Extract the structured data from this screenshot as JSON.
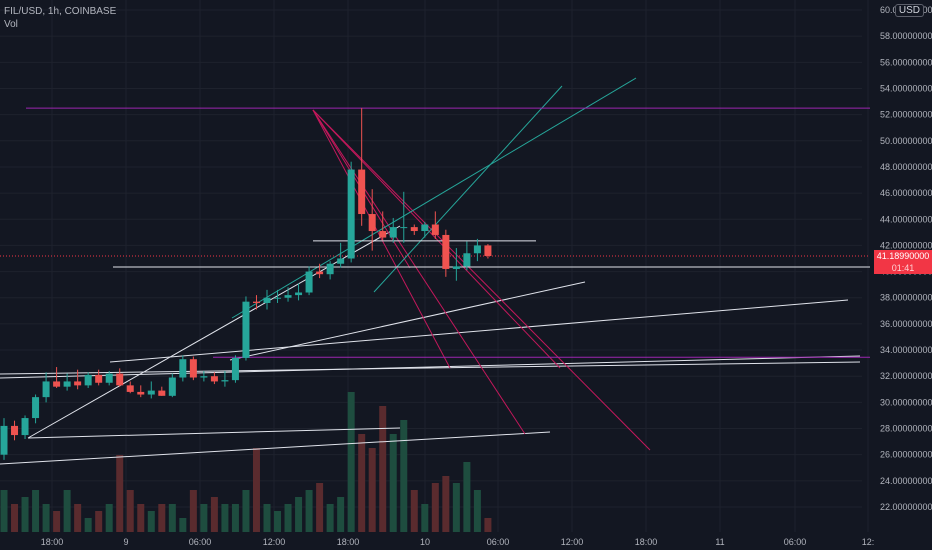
{
  "header": {
    "symbol_line": "FIL/USD, 1h, COINBASE",
    "volume_label": "Vol",
    "currency": "USD"
  },
  "price_badge": {
    "value": "41.18990000",
    "countdown": "01:41",
    "color": "#f23645"
  },
  "colors": {
    "background": "#131722",
    "up": "#26a69a",
    "down": "#ef5350",
    "vol_up": "#1e4d3f",
    "vol_down": "#5a2b2e",
    "axis_text": "#b2b5be",
    "grid": "#1e222d"
  },
  "chart_data": {
    "type": "candlestick",
    "timeframe": "1h",
    "x_axis_labels": [
      "18:00",
      "9",
      "06:00",
      "12:00",
      "18:00",
      "10",
      "06:00",
      "12:00",
      "18:00",
      "11",
      "06:00",
      "12:"
    ],
    "y_axis_labels": [
      "60.00000000",
      "58.00000000",
      "56.00000000",
      "54.00000000",
      "52.00000000",
      "50.00000000",
      "48.00000000",
      "46.00000000",
      "44.00000000",
      "42.00000000",
      "40.00000000",
      "38.00000000",
      "36.00000000",
      "34.00000000",
      "32.00000000",
      "30.00000000",
      "28.00000000",
      "26.00000000",
      "24.00000000",
      "22.00000000"
    ],
    "ylim": [
      21,
      61
    ],
    "candles": [
      {
        "o": 26,
        "h": 28.8,
        "l": 25.6,
        "c": 28.2
      },
      {
        "o": 28.2,
        "h": 28.6,
        "l": 27.1,
        "c": 27.5
      },
      {
        "o": 27.5,
        "h": 29,
        "l": 27.2,
        "c": 28.8
      },
      {
        "o": 28.8,
        "h": 30.6,
        "l": 28.4,
        "c": 30.4
      },
      {
        "o": 30.4,
        "h": 32.3,
        "l": 30,
        "c": 31.6
      },
      {
        "o": 31.6,
        "h": 32.7,
        "l": 31.1,
        "c": 31.2
      },
      {
        "o": 31.2,
        "h": 32.2,
        "l": 30.9,
        "c": 31.6
      },
      {
        "o": 31.6,
        "h": 32.5,
        "l": 31,
        "c": 31.3
      },
      {
        "o": 31.3,
        "h": 32.3,
        "l": 31.1,
        "c": 32.1
      },
      {
        "o": 32.1,
        "h": 32.5,
        "l": 31.3,
        "c": 31.5
      },
      {
        "o": 31.5,
        "h": 32.4,
        "l": 31.3,
        "c": 32.2
      },
      {
        "o": 32.2,
        "h": 32.6,
        "l": 31.2,
        "c": 31.3
      },
      {
        "o": 31.3,
        "h": 31.6,
        "l": 30.7,
        "c": 30.8
      },
      {
        "o": 30.8,
        "h": 31.3,
        "l": 30.4,
        "c": 30.6
      },
      {
        "o": 30.6,
        "h": 31.6,
        "l": 30.3,
        "c": 30.9
      },
      {
        "o": 30.9,
        "h": 31.2,
        "l": 30.5,
        "c": 30.5
      },
      {
        "o": 30.5,
        "h": 32.2,
        "l": 30.4,
        "c": 31.9
      },
      {
        "o": 31.9,
        "h": 33.6,
        "l": 31.6,
        "c": 33.3
      },
      {
        "o": 33.3,
        "h": 33.5,
        "l": 31.7,
        "c": 31.9
      },
      {
        "o": 31.9,
        "h": 32.4,
        "l": 31.6,
        "c": 32.0
      },
      {
        "o": 32.0,
        "h": 32.3,
        "l": 31.4,
        "c": 31.6
      },
      {
        "o": 31.6,
        "h": 32.4,
        "l": 31.2,
        "c": 31.7
      },
      {
        "o": 31.7,
        "h": 33.6,
        "l": 31.5,
        "c": 33.4
      },
      {
        "o": 33.4,
        "h": 38.1,
        "l": 33.2,
        "c": 37.7
      },
      {
        "o": 37.7,
        "h": 38.2,
        "l": 37.1,
        "c": 37.6
      },
      {
        "o": 37.6,
        "h": 38.6,
        "l": 37.1,
        "c": 38.0
      },
      {
        "o": 38.0,
        "h": 38.6,
        "l": 37.6,
        "c": 38.0
      },
      {
        "o": 38.0,
        "h": 38.8,
        "l": 37.7,
        "c": 38.2
      },
      {
        "o": 38.2,
        "h": 39.1,
        "l": 37.8,
        "c": 38.4
      },
      {
        "o": 38.4,
        "h": 40.4,
        "l": 38.2,
        "c": 40.0
      },
      {
        "o": 40.0,
        "h": 40.6,
        "l": 39.5,
        "c": 39.8
      },
      {
        "o": 39.8,
        "h": 40.8,
        "l": 39.4,
        "c": 40.6
      },
      {
        "o": 40.6,
        "h": 42.2,
        "l": 40.3,
        "c": 41.0
      },
      {
        "o": 41.0,
        "h": 48.4,
        "l": 40.7,
        "c": 47.8
      },
      {
        "o": 47.8,
        "h": 52.5,
        "l": 43.5,
        "c": 44.4
      },
      {
        "o": 44.4,
        "h": 46.3,
        "l": 41.6,
        "c": 43.1
      },
      {
        "o": 43.1,
        "h": 44.6,
        "l": 42.4,
        "c": 42.6
      },
      {
        "o": 42.6,
        "h": 44.1,
        "l": 42.2,
        "c": 43.4
      },
      {
        "o": 43.4,
        "h": 46.1,
        "l": 42.2,
        "c": 43.4
      },
      {
        "o": 43.4,
        "h": 43.6,
        "l": 42.8,
        "c": 43.1
      },
      {
        "o": 43.1,
        "h": 43.8,
        "l": 42.6,
        "c": 43.6
      },
      {
        "o": 43.6,
        "h": 44.6,
        "l": 42.5,
        "c": 42.8
      },
      {
        "o": 42.8,
        "h": 43.2,
        "l": 39.6,
        "c": 40.2
      },
      {
        "o": 40.2,
        "h": 41.8,
        "l": 39.3,
        "c": 40.4
      },
      {
        "o": 40.4,
        "h": 42.3,
        "l": 40.1,
        "c": 41.4
      },
      {
        "o": 41.4,
        "h": 42.5,
        "l": 40.8,
        "c": 42.0
      },
      {
        "o": 42.0,
        "h": 42.1,
        "l": 41.0,
        "c": 41.19
      }
    ],
    "volume_relative": [
      0.3,
      0.2,
      0.25,
      0.3,
      0.2,
      0.15,
      0.3,
      0.2,
      0.1,
      0.15,
      0.2,
      0.55,
      0.3,
      0.2,
      0.15,
      0.2,
      0.2,
      0.1,
      0.3,
      0.2,
      0.25,
      0.2,
      0.2,
      0.3,
      0.6,
      0.2,
      0.15,
      0.2,
      0.25,
      0.3,
      0.35,
      0.2,
      0.25,
      1.0,
      0.7,
      0.6,
      0.9,
      0.7,
      0.8,
      0.3,
      0.2,
      0.35,
      0.4,
      0.35,
      0.5,
      0.3,
      0.1
    ],
    "horizontal_lines": [
      {
        "price": 52.5,
        "color": "#9c27b0"
      },
      {
        "price": 42.35,
        "color": "#e0e3eb"
      },
      {
        "price": 40.35,
        "color": "#e0e3eb"
      },
      {
        "price": 33.45,
        "color": "#9c27b0"
      }
    ]
  }
}
